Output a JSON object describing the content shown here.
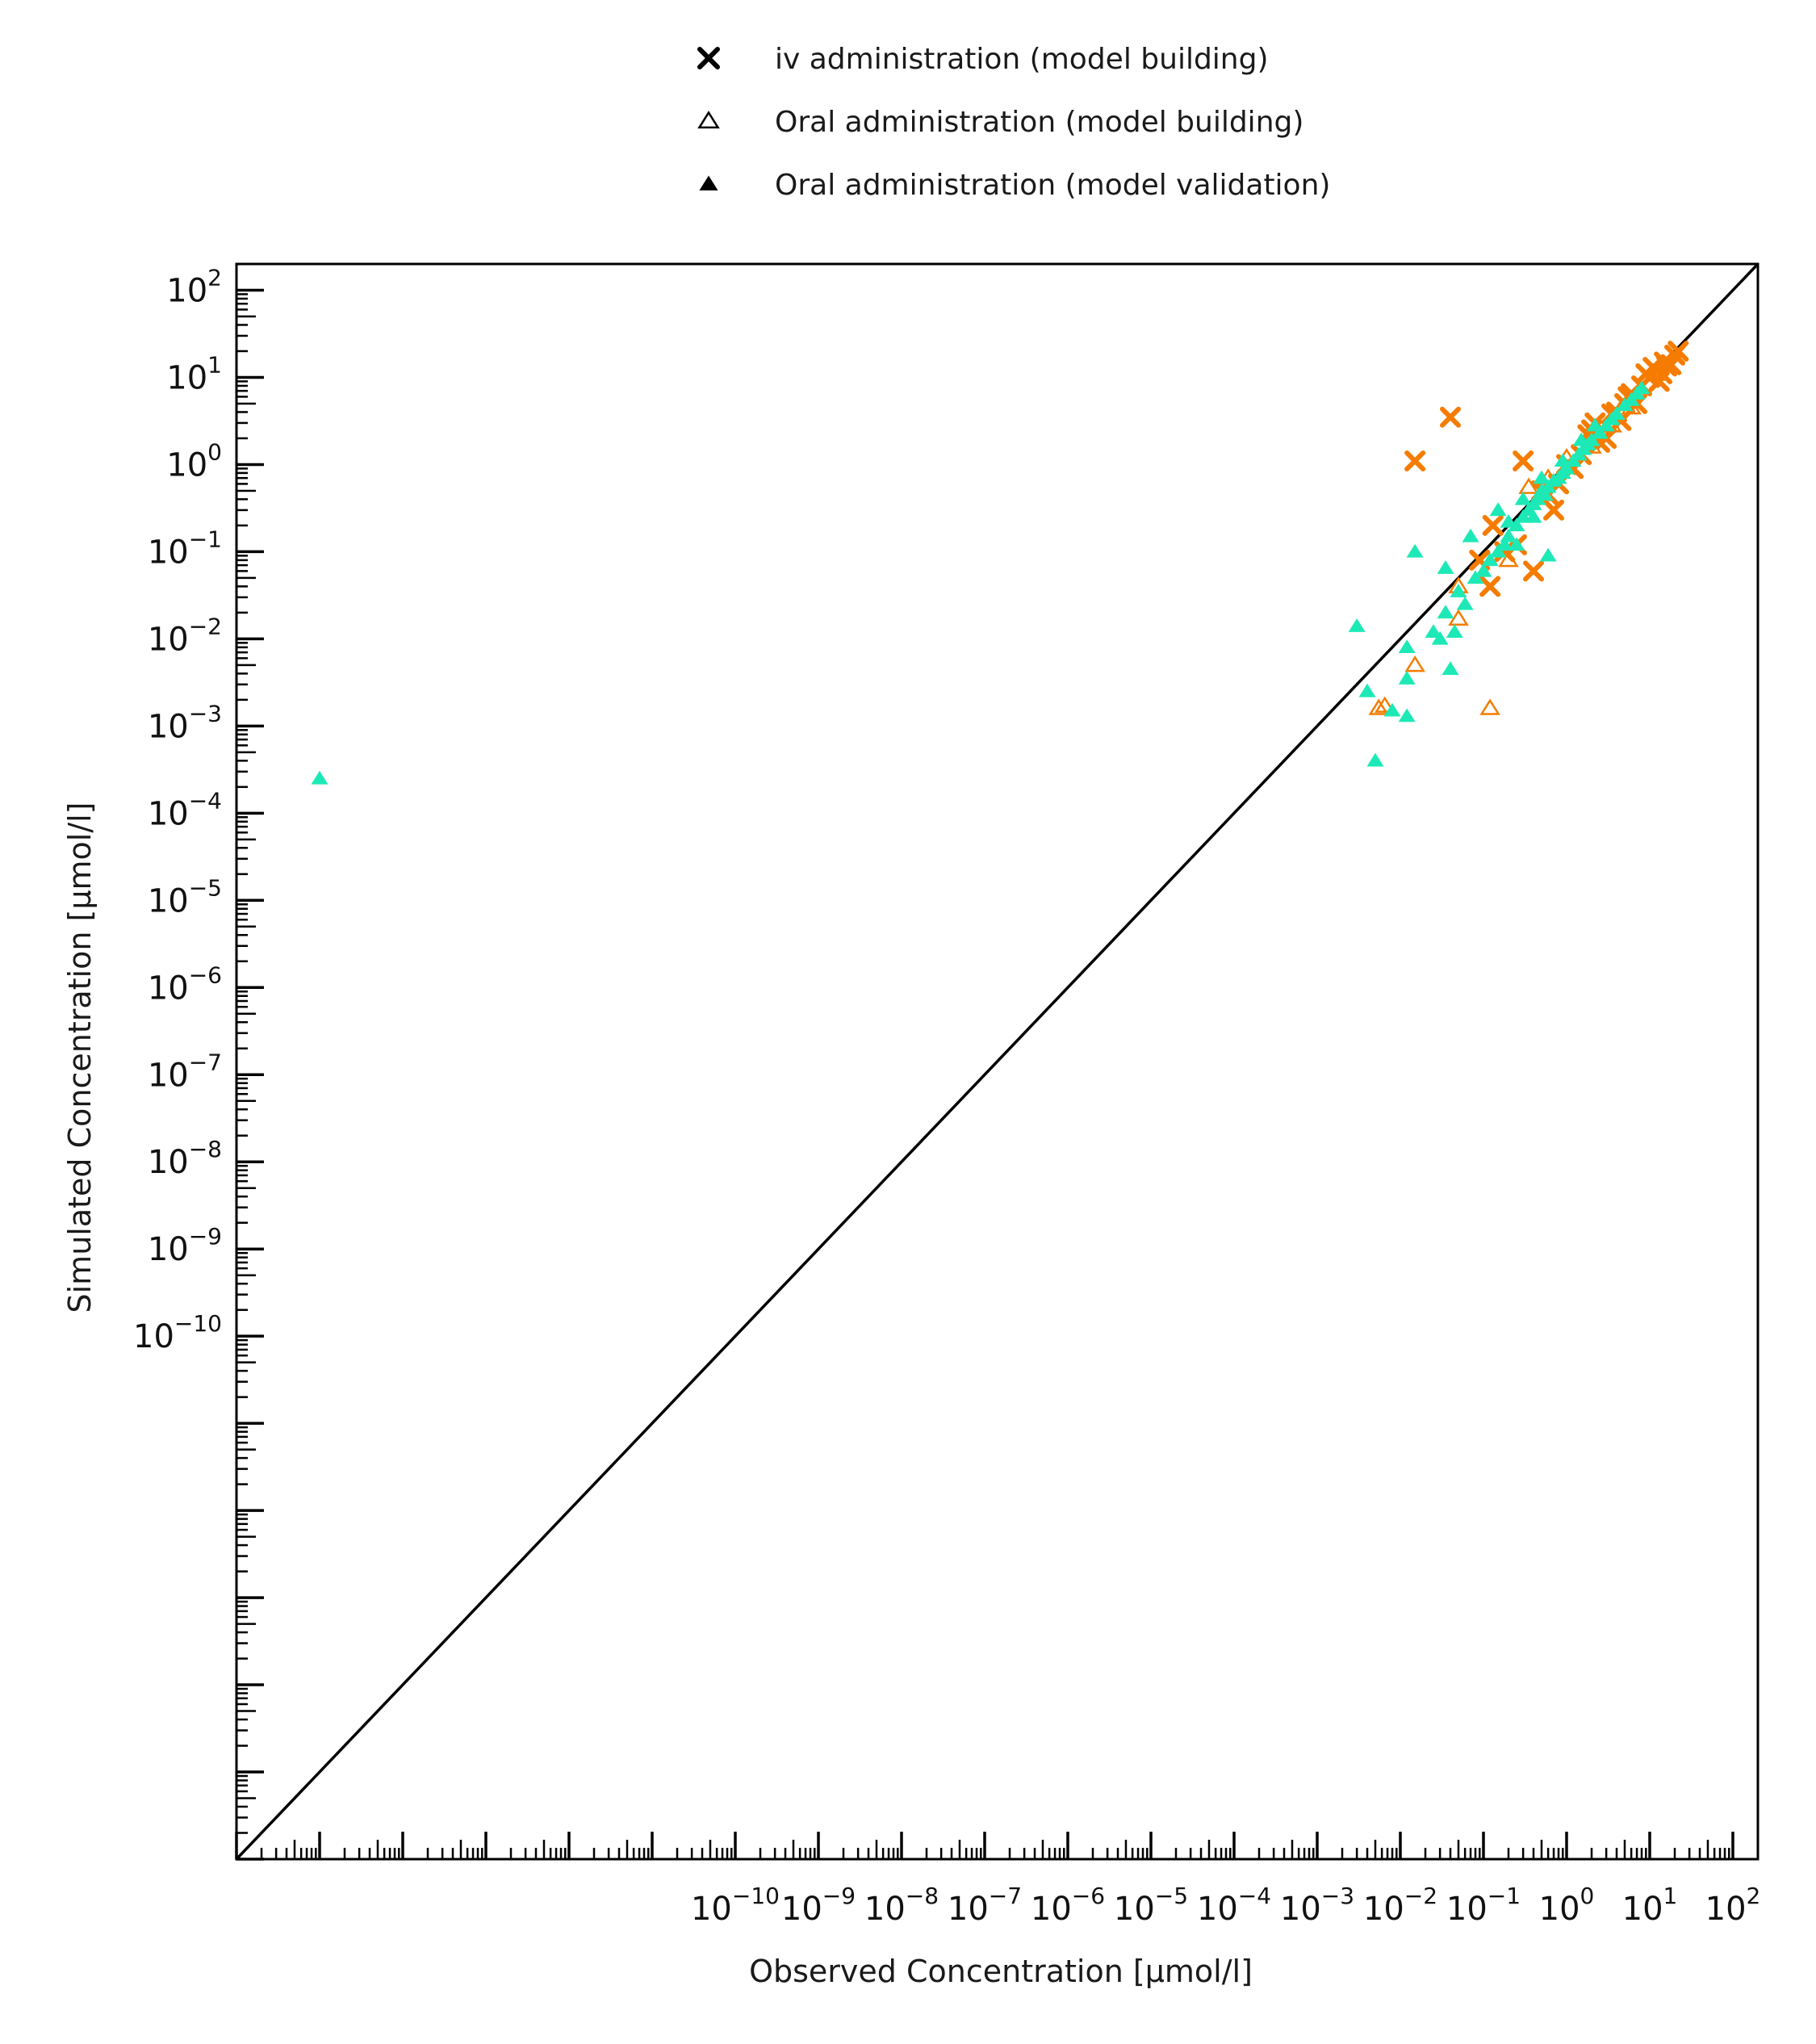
{
  "chart_data": {
    "type": "scatter",
    "title": "",
    "xlabel": "Observed Concentration [µmol/l]",
    "ylabel": "Simulated Concentration [µmol/l]",
    "x_scale": "log",
    "y_scale": "log",
    "xlim": [
      1e-16,
      200
    ],
    "ylim": [
      1e-16,
      200
    ],
    "grid": false,
    "legend_position": "top",
    "identity_line": true,
    "colors": {
      "orange": "#f57c00",
      "teal": "#1de9b6",
      "legend_marker": "#000000",
      "axis": "#000000"
    },
    "x_ticks": [
      {
        "base": "10",
        "exp": "−10",
        "value": 1e-10
      },
      {
        "base": "10",
        "exp": "−9",
        "value": 1e-09
      },
      {
        "base": "10",
        "exp": "−8",
        "value": 1e-08
      },
      {
        "base": "10",
        "exp": "−7",
        "value": 1e-07
      },
      {
        "base": "10",
        "exp": "−6",
        "value": 1e-06
      },
      {
        "base": "10",
        "exp": "−5",
        "value": 1e-05
      },
      {
        "base": "10",
        "exp": "−4",
        "value": 0.0001
      },
      {
        "base": "10",
        "exp": "−3",
        "value": 0.001
      },
      {
        "base": "10",
        "exp": "−2",
        "value": 0.01
      },
      {
        "base": "10",
        "exp": "−1",
        "value": 0.1
      },
      {
        "base": "10",
        "exp": "0",
        "value": 1
      },
      {
        "base": "10",
        "exp": "1",
        "value": 10
      },
      {
        "base": "10",
        "exp": "2",
        "value": 100
      }
    ],
    "y_ticks": [
      {
        "base": "10",
        "exp": "2",
        "value": 100
      },
      {
        "base": "10",
        "exp": "1",
        "value": 10
      },
      {
        "base": "10",
        "exp": "0",
        "value": 1
      },
      {
        "base": "10",
        "exp": "−1",
        "value": 0.1
      },
      {
        "base": "10",
        "exp": "−2",
        "value": 0.01
      },
      {
        "base": "10",
        "exp": "−3",
        "value": 0.001
      },
      {
        "base": "10",
        "exp": "−4",
        "value": 0.0001
      },
      {
        "base": "10",
        "exp": "−5",
        "value": 1e-05
      },
      {
        "base": "10",
        "exp": "−6",
        "value": 1e-06
      },
      {
        "base": "10",
        "exp": "−7",
        "value": 1e-07
      },
      {
        "base": "10",
        "exp": "−8",
        "value": 1e-08
      },
      {
        "base": "10",
        "exp": "−9",
        "value": 1e-09
      },
      {
        "base": "10",
        "exp": "−10",
        "value": 1e-10
      }
    ],
    "legend": [
      {
        "label": "iv administration (model building)",
        "marker": "x"
      },
      {
        "label": "Oral administration (model building)",
        "marker": "triangle-open"
      },
      {
        "label": "Oral administration (model validation)",
        "marker": "triangle-filled"
      }
    ],
    "series": [
      {
        "marker": "x",
        "color": "#f57c00",
        "points": [
          [
            0.015,
            1.1
          ],
          [
            0.04,
            3.5
          ],
          [
            0.3,
            1.1
          ],
          [
            0.13,
            0.2
          ],
          [
            0.18,
            0.1
          ],
          [
            0.12,
            0.04
          ],
          [
            0.09,
            0.08
          ],
          [
            0.25,
            0.12
          ],
          [
            0.4,
            0.06
          ],
          [
            0.7,
            0.3
          ],
          [
            0.5,
            0.5
          ],
          [
            1.0,
            1.0
          ],
          [
            1.5,
            1.3
          ],
          [
            2.0,
            2.5
          ],
          [
            3.0,
            2.0
          ],
          [
            4.0,
            4.0
          ],
          [
            5.0,
            5.0
          ],
          [
            0.8,
            0.6
          ],
          [
            1.2,
            0.9
          ],
          [
            2.5,
            1.8
          ],
          [
            6.0,
            6.5
          ],
          [
            7.0,
            5.0
          ],
          [
            8.0,
            8.0
          ],
          [
            10.0,
            10.0
          ],
          [
            12.0,
            12.0
          ],
          [
            14.0,
            11.0
          ],
          [
            15.0,
            15.0
          ],
          [
            18.0,
            14.0
          ],
          [
            20.0,
            18.0
          ],
          [
            22.0,
            20.0
          ],
          [
            13.0,
            9.0
          ],
          [
            9.0,
            11.0
          ],
          [
            3.5,
            3.8
          ],
          [
            1.8,
            2.2
          ],
          [
            0.6,
            0.45
          ],
          [
            2.2,
            3.0
          ],
          [
            4.5,
            3.2
          ],
          [
            11.0,
            13.0
          ],
          [
            16.0,
            13.5
          ],
          [
            5.5,
            6.0
          ]
        ]
      },
      {
        "marker": "triangle-open",
        "color": "#f57c00",
        "points": [
          [
            0.0055,
            0.0016
          ],
          [
            0.0065,
            0.0017
          ],
          [
            0.015,
            0.005
          ],
          [
            0.05,
            0.017
          ],
          [
            0.05,
            0.04
          ],
          [
            0.12,
            0.0016
          ],
          [
            0.2,
            0.08
          ],
          [
            0.35,
            0.55
          ],
          [
            0.6,
            0.7
          ],
          [
            1.0,
            1.2
          ],
          [
            2.0,
            1.6
          ],
          [
            3.5,
            2.8
          ],
          [
            6.0,
            4.5
          ]
        ]
      },
      {
        "marker": "triangle-filled",
        "color": "#1de9b6",
        "points": [
          [
            1e-15,
            0.00025
          ],
          [
            0.003,
            0.014
          ],
          [
            0.004,
            0.0025
          ],
          [
            0.005,
            0.0004
          ],
          [
            0.008,
            0.0015
          ],
          [
            0.012,
            0.0013
          ],
          [
            0.012,
            0.0035
          ],
          [
            0.012,
            0.008
          ],
          [
            0.015,
            0.1
          ],
          [
            0.025,
            0.012
          ],
          [
            0.03,
            0.01
          ],
          [
            0.035,
            0.02
          ],
          [
            0.035,
            0.065
          ],
          [
            0.04,
            0.0045
          ],
          [
            0.045,
            0.012
          ],
          [
            0.05,
            0.035
          ],
          [
            0.06,
            0.025
          ],
          [
            0.07,
            0.15
          ],
          [
            0.08,
            0.05
          ],
          [
            0.1,
            0.06
          ],
          [
            0.12,
            0.08
          ],
          [
            0.15,
            0.1
          ],
          [
            0.18,
            0.12
          ],
          [
            0.2,
            0.15
          ],
          [
            0.25,
            0.2
          ],
          [
            0.3,
            0.25
          ],
          [
            0.35,
            0.3
          ],
          [
            0.4,
            0.35
          ],
          [
            0.45,
            0.4
          ],
          [
            0.5,
            0.5
          ],
          [
            0.55,
            0.45
          ],
          [
            0.6,
            0.55
          ],
          [
            0.7,
            0.65
          ],
          [
            0.8,
            0.7
          ],
          [
            0.9,
            0.8
          ],
          [
            1.0,
            0.9
          ],
          [
            1.2,
            1.1
          ],
          [
            1.4,
            1.3
          ],
          [
            1.6,
            1.5
          ],
          [
            1.8,
            1.7
          ],
          [
            2.0,
            1.9
          ],
          [
            2.5,
            2.3
          ],
          [
            3.0,
            2.8
          ],
          [
            3.5,
            3.3
          ],
          [
            4.0,
            3.8
          ],
          [
            5.0,
            4.8
          ],
          [
            6.0,
            5.5
          ],
          [
            7.0,
            6.5
          ],
          [
            8.0,
            7.5
          ],
          [
            0.3,
            0.4
          ],
          [
            0.5,
            0.7
          ],
          [
            0.25,
            0.12
          ],
          [
            0.15,
            0.3
          ],
          [
            0.6,
            0.09
          ],
          [
            0.2,
            0.22
          ],
          [
            1.5,
            1.9
          ],
          [
            2.2,
            2.8
          ],
          [
            0.4,
            0.25
          ],
          [
            0.9,
            1.1
          ]
        ]
      }
    ]
  }
}
